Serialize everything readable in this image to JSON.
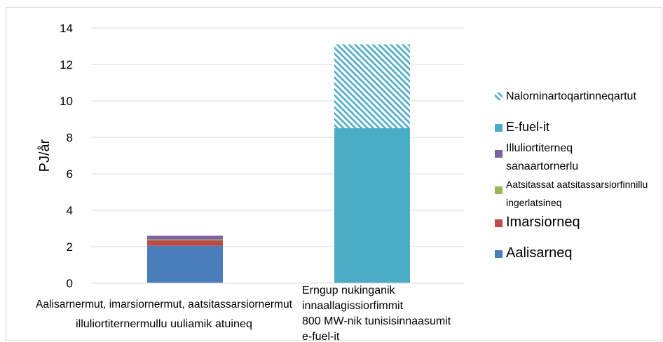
{
  "chart_data": {
    "type": "bar",
    "stacked": true,
    "ylabel": "PJ/år",
    "ylim": [
      0,
      14
    ],
    "yticks": [
      0,
      2,
      4,
      6,
      8,
      10,
      12,
      14
    ],
    "grid": true,
    "legend_position": "right",
    "categories": [
      [
        "Aalisarnermut, imarsiornermut, aatsitassarsiornermut",
        "illuliortiternermullu uuliamik atuineq"
      ],
      [
        "Erngup nukinganik",
        "innaallagissiorfimmit",
        "800 MW-nik tunisisinnaasumit",
        "e-fuel-it"
      ]
    ],
    "series": [
      {
        "name": "Aalisarneq",
        "color": "#4a7ebb",
        "values": [
          2.05,
          0
        ]
      },
      {
        "name": "Imarsiorneq",
        "color": "#be4b48",
        "values": [
          0.3,
          0
        ]
      },
      {
        "name": "Aatsitassat aatsitassarsiorfinnillu ingerlatsineq",
        "color": "#98b954",
        "values": [
          0.05,
          0
        ]
      },
      {
        "name": "Illuliortiterneq sanaartornerlu",
        "color": "#7d60a0",
        "values": [
          0.2,
          0
        ]
      },
      {
        "name": "E-fuel-it",
        "color": "#4bacc6",
        "values": [
          0,
          8.5
        ]
      },
      {
        "name": "Nalorninartoqartinneqartut",
        "color": "#4bacc6",
        "pattern": "hatch",
        "values": [
          0,
          4.6
        ]
      }
    ],
    "legend_order": [
      "Nalorninartoqartinneqartut",
      "E-fuel-it",
      "Illuliortiterneq sanaartornerlu",
      "Aatsitassat aatsitassarsiorfinnillu ingerlatsineq",
      "Imarsiorneq",
      "Aalisarneq"
    ],
    "legend_lines": [
      [
        "Nalorninartoqartinneqartut"
      ],
      [
        "E-fuel-it"
      ],
      [
        "Illuliortiterneq",
        "sanaartornerlu"
      ],
      [
        "Aatsitassat aatsitassarsiorfinnillu",
        "ingerlatsineq"
      ],
      [
        "Imarsiorneq"
      ],
      [
        "Aalisarneq"
      ]
    ]
  }
}
